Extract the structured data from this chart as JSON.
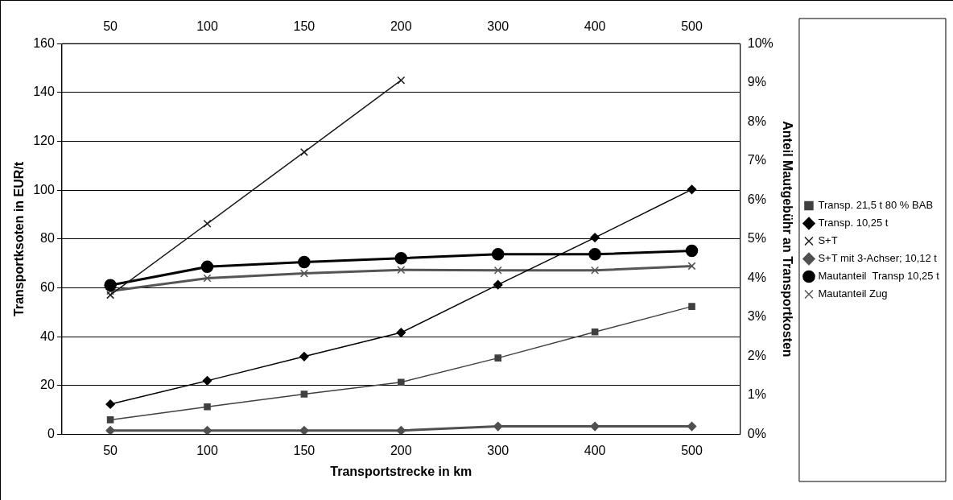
{
  "chart_data": {
    "type": "line",
    "xlabel": "Transportstrecke in km",
    "ylabel": "Transportksoten in EUR/t",
    "y2label": "Anteil Mautgebühr an Transportkosten",
    "categories": [
      "50",
      "100",
      "150",
      "200",
      "300",
      "400",
      "500"
    ],
    "series": [
      {
        "name": "Transp. 21,5 t 80 % BAB",
        "color": "#404040",
        "marker": "square",
        "values": [
          6,
          11.3,
          16.5,
          21.4,
          31.3,
          42,
          52.4
        ]
      },
      {
        "name": "Transp. 10,25 t",
        "color": "#000000",
        "marker": "diamond",
        "values": [
          12.4,
          22,
          31.9,
          41.7,
          61.3,
          80.6,
          100.3
        ]
      },
      {
        "name": "S+T",
        "color": "#1a1a1a",
        "marker": "cross",
        "values": [
          57.1,
          86.3,
          115.6,
          145,
          null,
          null,
          null
        ]
      },
      {
        "name": "S+T mit 3-Achser; 10,12 t",
        "color": "#505050",
        "marker": "diamond",
        "values": [
          1.6,
          1.6,
          1.6,
          1.6,
          3.3,
          3.3,
          3.3
        ]
      },
      {
        "name": "Mautanteil  Transp 10,25 t",
        "color": "#000000",
        "marker": "circle",
        "axis": "y2",
        "values": [
          3.82,
          4.29,
          4.41,
          4.51,
          4.61,
          4.61,
          4.7
        ]
      },
      {
        "name": "Mautanteil Zug",
        "color": "#555555",
        "marker": "cross",
        "axis": "y2",
        "values": [
          3.67,
          4.0,
          4.12,
          4.21,
          4.2,
          4.2,
          4.31
        ]
      }
    ],
    "ylim": [
      0,
      160
    ],
    "yticks": [
      0,
      20,
      40,
      60,
      80,
      100,
      120,
      140,
      160
    ],
    "y2lim": [
      0,
      10
    ],
    "y2ticks": [
      {
        "value": 0,
        "label": "0%"
      },
      {
        "value": 1,
        "label": "1%"
      },
      {
        "value": 2,
        "label": "2%"
      },
      {
        "value": 3,
        "label": "3%"
      },
      {
        "value": 4,
        "label": "4%"
      },
      {
        "value": 5,
        "label": "5%"
      },
      {
        "value": 6,
        "label": "6%"
      },
      {
        "value": 7,
        "label": "7%"
      },
      {
        "value": 8,
        "label": "8%"
      },
      {
        "value": 9,
        "label": "9%"
      },
      {
        "value": 10,
        "label": "10%"
      }
    ],
    "grid": "y",
    "legend": "right",
    "line_style": "solid"
  }
}
